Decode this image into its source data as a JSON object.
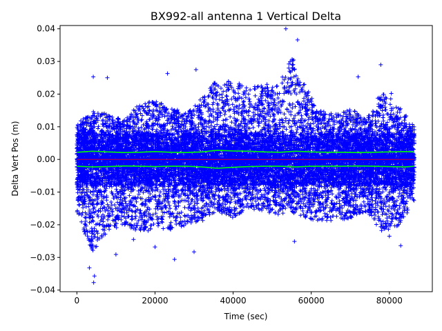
{
  "chart_data": {
    "type": "scatter",
    "title": "BX992-all antenna 1 Vertical Delta",
    "xlabel": "Time (sec)",
    "ylabel": "Delta Vert Pos (m)",
    "xlim": [
      -4300,
      91000
    ],
    "ylim": [
      -0.0405,
      0.041
    ],
    "xticks": [
      0,
      20000,
      40000,
      60000,
      80000
    ],
    "xtick_labels": [
      "0",
      "20000",
      "40000",
      "60000",
      "80000"
    ],
    "yticks": [
      -0.04,
      -0.03,
      -0.02,
      -0.01,
      0.0,
      0.01,
      0.02,
      0.03,
      0.04
    ],
    "ytick_labels": [
      "−0.04",
      "−0.03",
      "−0.02",
      "−0.01",
      "0.00",
      "0.01",
      "0.02",
      "0.03",
      "0.04"
    ],
    "grid": false,
    "series": [
      {
        "name": "",
        "marker": "plus",
        "color": "#0000ff",
        "x_range": [
          0,
          86400
        ],
        "envelope": {
          "x": [
            0,
            4000,
            8000,
            12000,
            16000,
            20000,
            24000,
            28000,
            32000,
            36000,
            40000,
            44000,
            48000,
            52000,
            55000,
            58000,
            62000,
            66000,
            70000,
            74000,
            78000,
            82000,
            86400
          ],
          "upper": [
            0.011,
            0.015,
            0.014,
            0.012,
            0.017,
            0.018,
            0.016,
            0.014,
            0.019,
            0.025,
            0.024,
            0.022,
            0.023,
            0.024,
            0.032,
            0.024,
            0.015,
            0.014,
            0.016,
            0.012,
            0.021,
            0.017,
            0.01
          ],
          "lower": [
            -0.016,
            -0.029,
            -0.022,
            -0.02,
            -0.023,
            -0.021,
            -0.022,
            -0.02,
            -0.019,
            -0.016,
            -0.018,
            -0.015,
            -0.016,
            -0.017,
            -0.016,
            -0.018,
            -0.019,
            -0.019,
            -0.018,
            -0.016,
            -0.022,
            -0.021,
            -0.013
          ]
        },
        "outliers": [
          {
            "x": 4200,
            "y": 0.0253
          },
          {
            "x": 7800,
            "y": 0.025
          },
          {
            "x": 23200,
            "y": 0.0263
          },
          {
            "x": 30500,
            "y": 0.0275
          },
          {
            "x": 53500,
            "y": 0.04
          },
          {
            "x": 56500,
            "y": 0.0366
          },
          {
            "x": 72000,
            "y": 0.0253
          },
          {
            "x": 77800,
            "y": 0.029
          },
          {
            "x": 80500,
            "y": 0.0202
          },
          {
            "x": 4300,
            "y": -0.0377
          },
          {
            "x": 4500,
            "y": -0.0357
          },
          {
            "x": 3200,
            "y": -0.0332
          },
          {
            "x": 10000,
            "y": -0.0291
          },
          {
            "x": 25000,
            "y": -0.0306
          },
          {
            "x": 30000,
            "y": -0.0283
          },
          {
            "x": 55700,
            "y": -0.0251
          },
          {
            "x": 82900,
            "y": -0.0264
          },
          {
            "x": 80000,
            "y": -0.0235
          },
          {
            "x": 20000,
            "y": -0.0268
          },
          {
            "x": 14500,
            "y": -0.0245
          }
        ]
      },
      {
        "name": "",
        "style": "line",
        "color": "#00ff00",
        "x": [
          0,
          4000,
          8000,
          12000,
          16000,
          20000,
          24000,
          28000,
          32000,
          36000,
          40000,
          44000,
          48000,
          52000,
          56000,
          60000,
          64000,
          68000,
          72000,
          76000,
          80000,
          84000,
          86400
        ],
        "values": [
          0.0022,
          0.0025,
          0.0023,
          0.0021,
          0.0022,
          0.0024,
          0.0022,
          0.0021,
          0.0023,
          0.0028,
          0.0026,
          0.0025,
          0.0023,
          0.0022,
          0.0025,
          0.0023,
          0.0022,
          0.0022,
          0.0021,
          0.0022,
          0.0023,
          0.0024,
          0.0023
        ]
      },
      {
        "name": "",
        "style": "line",
        "color": "#00ff00",
        "x": [
          0,
          4000,
          8000,
          12000,
          16000,
          20000,
          24000,
          28000,
          32000,
          36000,
          40000,
          44000,
          48000,
          52000,
          56000,
          60000,
          64000,
          68000,
          72000,
          76000,
          80000,
          84000,
          86400
        ],
        "values": [
          -0.0021,
          -0.0023,
          -0.0022,
          -0.002,
          -0.0021,
          -0.0022,
          -0.0021,
          -0.0021,
          -0.0023,
          -0.0027,
          -0.0024,
          -0.0022,
          -0.0021,
          -0.0021,
          -0.0023,
          -0.0021,
          -0.0021,
          -0.0021,
          -0.002,
          -0.0021,
          -0.0022,
          -0.0023,
          -0.0021
        ]
      },
      {
        "name": "",
        "style": "line",
        "color": "#ff0000",
        "x": [
          0,
          86400
        ],
        "values": [
          0.0,
          0.0
        ]
      }
    ]
  }
}
